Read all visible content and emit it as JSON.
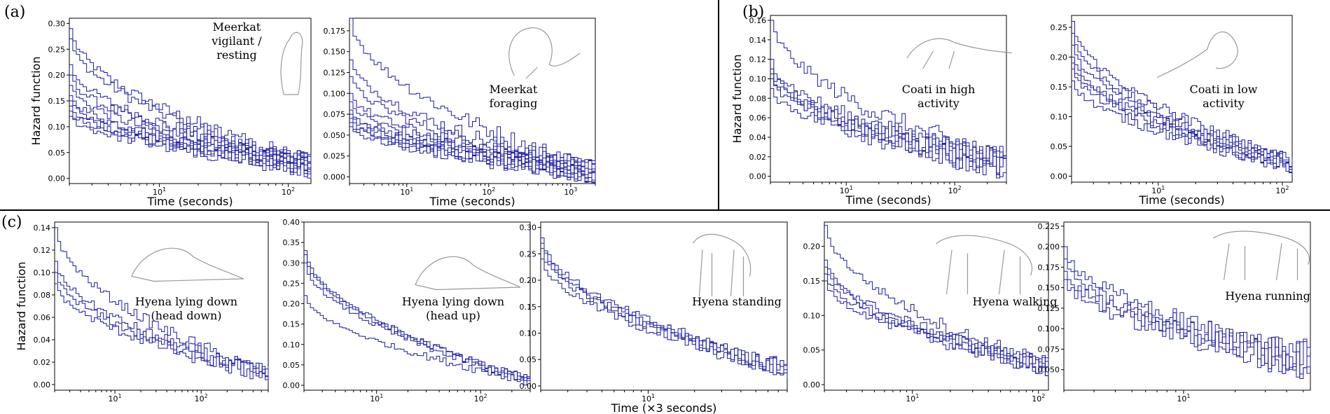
{
  "panel_labels": [
    "(a)",
    "(b)",
    "(c)"
  ],
  "series_color": "#1a1aa6",
  "chart_data": [
    {
      "type": "line",
      "panel": "(a)",
      "annotation": [
        "Meerkat",
        "vigilant /",
        "resting"
      ],
      "animal_icon": "meerkat-standing-icon",
      "xlabel": "Time (seconds)",
      "ylabel": "Hazard function",
      "x_scale": "log",
      "xlim": [
        2,
        150
      ],
      "ylim": [
        -0.01,
        0.31
      ],
      "x_ticks": [
        {
          "value": 10,
          "label": "10^1"
        },
        {
          "value": 100,
          "label": "10^2"
        }
      ],
      "y_ticks": [
        0.0,
        0.05,
        0.1,
        0.15,
        0.2,
        0.25,
        0.3
      ],
      "y_tick_labels": [
        "0.00",
        "0.05",
        "0.10",
        "0.15",
        "0.20",
        "0.25",
        "0.30"
      ],
      "series_count": 10,
      "y_start": 0.15,
      "y_end": 0.025,
      "y_noise": 0.02,
      "start_values": [
        0.29,
        0.27,
        0.22,
        0.2,
        0.18,
        0.16,
        0.15,
        0.14,
        0.13,
        0.12
      ]
    },
    {
      "type": "line",
      "panel": "(a)",
      "annotation": [
        "Meerkat",
        "foraging"
      ],
      "animal_icon": "meerkat-foraging-icon",
      "xlabel": "Time (seconds)",
      "ylabel": "",
      "x_scale": "log",
      "xlim": [
        2,
        2000
      ],
      "ylim": [
        -0.008,
        0.19
      ],
      "x_ticks": [
        {
          "value": 10,
          "label": "10^1"
        },
        {
          "value": 100,
          "label": "10^2"
        },
        {
          "value": 1000,
          "label": "10^3"
        }
      ],
      "y_ticks": [
        0.0,
        0.025,
        0.05,
        0.075,
        0.1,
        0.125,
        0.15,
        0.175
      ],
      "y_tick_labels": [
        "0.000",
        "0.025",
        "0.050",
        "0.075",
        "0.100",
        "0.125",
        "0.150",
        "0.175"
      ],
      "series_count": 10,
      "y_start": 0.09,
      "y_end": 0.006,
      "y_noise": 0.012,
      "start_values": [
        0.19,
        0.14,
        0.12,
        0.1,
        0.09,
        0.08,
        0.075,
        0.07,
        0.065,
        0.06
      ]
    },
    {
      "type": "line",
      "panel": "(b)",
      "annotation": [
        "Coati in high",
        "activity"
      ],
      "animal_icon": "coati-running-icon",
      "xlabel": "Time (seconds)",
      "ylabel": "Hazard function",
      "x_scale": "log",
      "xlim": [
        2,
        300
      ],
      "ylim": [
        -0.006,
        0.165
      ],
      "x_ticks": [
        {
          "value": 10,
          "label": "10^1"
        },
        {
          "value": 100,
          "label": "10^2"
        }
      ],
      "y_ticks": [
        0.0,
        0.02,
        0.04,
        0.06,
        0.08,
        0.1,
        0.12,
        0.14,
        0.16
      ],
      "y_tick_labels": [
        "0.00",
        "0.02",
        "0.04",
        "0.06",
        "0.08",
        "0.10",
        "0.12",
        "0.14",
        "0.16"
      ],
      "series_count": 6,
      "y_start": 0.105,
      "y_end": 0.012,
      "y_noise": 0.014,
      "start_values": [
        0.16,
        0.12,
        0.11,
        0.105,
        0.1,
        0.09
      ]
    },
    {
      "type": "line",
      "panel": "(b)",
      "annotation": [
        "Coati in low",
        "activity"
      ],
      "animal_icon": "coati-sitting-icon",
      "xlabel": "Time (seconds)",
      "ylabel": "",
      "x_scale": "log",
      "xlim": [
        2,
        120
      ],
      "ylim": [
        -0.01,
        0.27
      ],
      "x_ticks": [
        {
          "value": 10,
          "label": "10^1"
        },
        {
          "value": 100,
          "label": "10^2"
        }
      ],
      "y_ticks": [
        0.0,
        0.05,
        0.1,
        0.15,
        0.2,
        0.25
      ],
      "y_tick_labels": [
        "0.00",
        "0.05",
        "0.10",
        "0.15",
        "0.20",
        "0.25"
      ],
      "series_count": 7,
      "y_start": 0.2,
      "y_end": 0.02,
      "y_noise": 0.015,
      "start_values": [
        0.26,
        0.24,
        0.22,
        0.2,
        0.19,
        0.18,
        0.16
      ]
    },
    {
      "type": "line",
      "panel": "(c)",
      "annotation": [
        "Hyena lying down",
        "(head down)"
      ],
      "animal_icon": "hyena-lying-head-down-icon",
      "xlabel": "",
      "ylabel": "Hazard function",
      "x_scale": "log",
      "xlim": [
        2,
        600
      ],
      "ylim": [
        -0.005,
        0.145
      ],
      "x_ticks": [
        {
          "value": 10,
          "label": "10^1"
        },
        {
          "value": 100,
          "label": "10^2"
        }
      ],
      "y_ticks": [
        0.0,
        0.02,
        0.04,
        0.06,
        0.08,
        0.1,
        0.12,
        0.14
      ],
      "y_tick_labels": [
        "0.00",
        "0.02",
        "0.04",
        "0.06",
        "0.08",
        "0.10",
        "0.12",
        "0.14"
      ],
      "series_count": 4,
      "y_start": 0.1,
      "y_end": 0.008,
      "y_noise": 0.007,
      "start_values": [
        0.14,
        0.11,
        0.1,
        0.09
      ]
    },
    {
      "type": "line",
      "panel": "(c)",
      "annotation": [
        "Hyena lying down",
        "(head up)"
      ],
      "animal_icon": "hyena-lying-head-up-icon",
      "xlabel": "",
      "ylabel": "",
      "x_scale": "log",
      "xlim": [
        2,
        300
      ],
      "ylim": [
        -0.012,
        0.4
      ],
      "x_ticks": [
        {
          "value": 10,
          "label": "10^1"
        },
        {
          "value": 100,
          "label": "10^2"
        }
      ],
      "y_ticks": [
        0.0,
        0.05,
        0.1,
        0.15,
        0.2,
        0.25,
        0.3,
        0.35,
        0.4
      ],
      "y_tick_labels": [
        "0.00",
        "0.05",
        "0.10",
        "0.15",
        "0.20",
        "0.25",
        "0.30",
        "0.35",
        "0.40"
      ],
      "series_count": 4,
      "y_start": 0.32,
      "y_end": 0.01,
      "y_noise": 0.01,
      "start_values": [
        0.33,
        0.32,
        0.3,
        0.22
      ]
    },
    {
      "type": "line",
      "panel": "(c)",
      "annotation": [
        "Hyena standing"
      ],
      "animal_icon": "hyena-standing-icon",
      "xlabel": "Time (×3 seconds)",
      "ylabel": "",
      "x_scale": "log",
      "xlim": [
        2,
        80
      ],
      "ylim": [
        -0.008,
        0.31
      ],
      "x_ticks": [
        {
          "value": 10,
          "label": "10^1"
        }
      ],
      "y_ticks": [
        0.0,
        0.05,
        0.1,
        0.15,
        0.2,
        0.25,
        0.3
      ],
      "y_tick_labels": [
        "0.00",
        "0.05",
        "0.10",
        "0.15",
        "0.20",
        "0.25",
        "0.30"
      ],
      "series_count": 4,
      "y_start": 0.26,
      "y_end": 0.03,
      "y_noise": 0.015,
      "start_values": [
        0.28,
        0.27,
        0.26,
        0.24
      ]
    },
    {
      "type": "line",
      "panel": "(c)",
      "annotation": [
        "Hyena walking"
      ],
      "animal_icon": "hyena-walking-icon",
      "xlabel": "",
      "ylabel": "",
      "x_scale": "log",
      "xlim": [
        2,
        120
      ],
      "ylim": [
        -0.008,
        0.235
      ],
      "x_ticks": [
        {
          "value": 10,
          "label": "10^1"
        },
        {
          "value": 100,
          "label": "10^2"
        }
      ],
      "y_ticks": [
        0.0,
        0.05,
        0.1,
        0.15,
        0.2
      ],
      "y_tick_labels": [
        "0.00",
        "0.05",
        "0.10",
        "0.15",
        "0.20"
      ],
      "series_count": 5,
      "y_start": 0.17,
      "y_end": 0.025,
      "y_noise": 0.012,
      "start_values": [
        0.23,
        0.18,
        0.17,
        0.16,
        0.15
      ]
    },
    {
      "type": "line",
      "panel": "(c)",
      "annotation": [
        "Hyena running"
      ],
      "animal_icon": "hyena-running-icon",
      "xlabel": "",
      "ylabel": "",
      "x_scale": "log",
      "xlim": [
        2,
        55
      ],
      "ylim": [
        0.025,
        0.23
      ],
      "x_ticks": [
        {
          "value": 10,
          "label": "10^1"
        }
      ],
      "y_ticks": [
        0.05,
        0.075,
        0.1,
        0.125,
        0.15,
        0.175,
        0.2,
        0.225
      ],
      "y_tick_labels": [
        "0.050",
        "0.075",
        "0.100",
        "0.125",
        "0.150",
        "0.175",
        "0.200",
        "0.225"
      ],
      "series_count": 4,
      "y_start": 0.18,
      "y_end": 0.06,
      "y_noise": 0.02,
      "start_values": [
        0.2,
        0.185,
        0.17,
        0.16
      ]
    }
  ]
}
